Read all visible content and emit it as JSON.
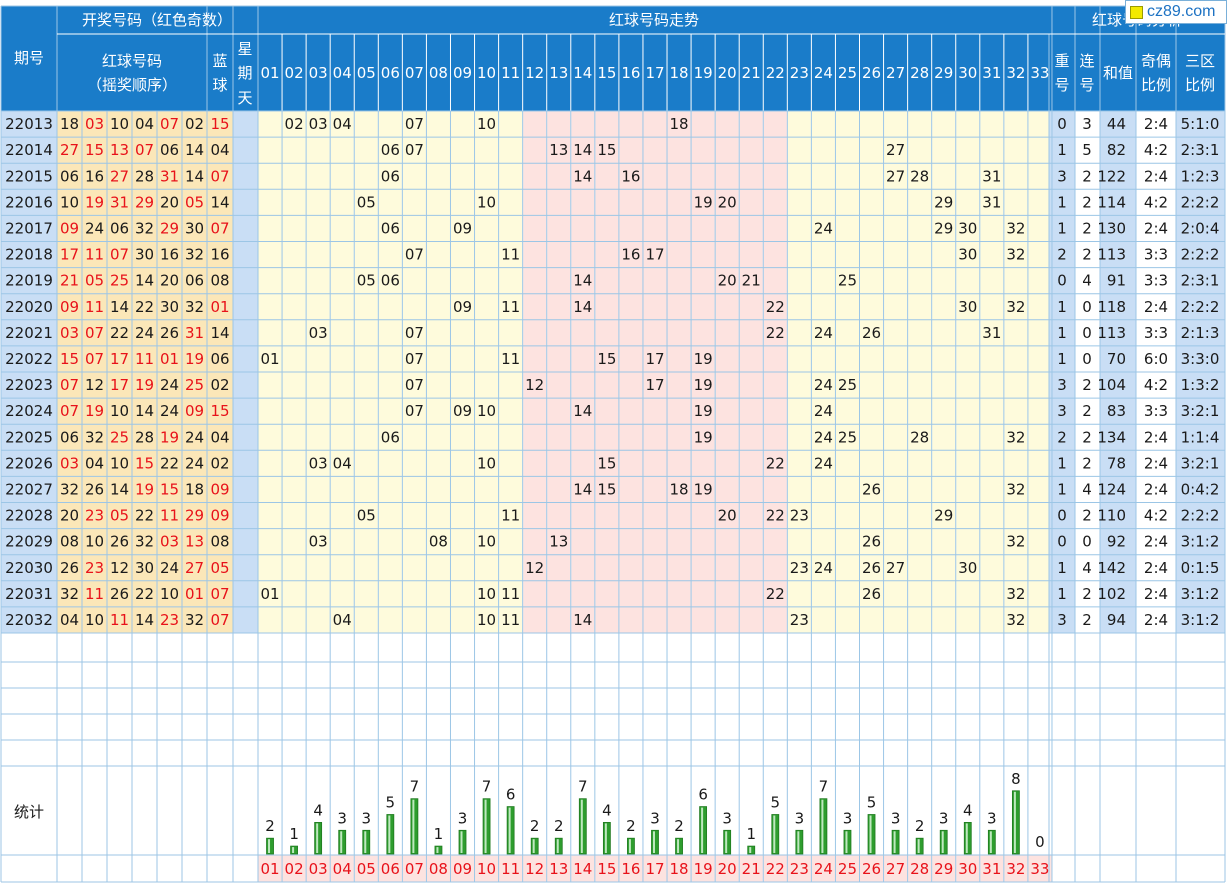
{
  "header": {
    "draw_group": "开奖号码（红色奇数）",
    "trend_group": "红球号码走势",
    "analysis_group": "红球号码分析",
    "period": "期号",
    "red_balls_line1": "红球号码",
    "red_balls_line2": "（摇奖顺序）",
    "blue_line1": "蓝",
    "blue_line2": "球",
    "weekday_line1": "星",
    "weekday_line2": "期",
    "weekday_line3": "天",
    "repeat_line1": "重",
    "repeat_line2": "号",
    "consecutive_line1": "连",
    "consecutive_line2": "号",
    "sum": "和值",
    "odd_even_line1": "奇偶",
    "odd_even_line2": "比例",
    "zone_line1": "三区",
    "zone_line2": "比例",
    "numbers": [
      "01",
      "02",
      "03",
      "04",
      "05",
      "06",
      "07",
      "08",
      "09",
      "10",
      "11",
      "12",
      "13",
      "14",
      "15",
      "16",
      "17",
      "18",
      "19",
      "20",
      "21",
      "22",
      "23",
      "24",
      "25",
      "26",
      "27",
      "28",
      "29",
      "30",
      "31",
      "32",
      "33"
    ]
  },
  "draws": [
    {
      "period": "22013",
      "reds": [
        "18",
        "03",
        "10",
        "04",
        "07",
        "02"
      ],
      "blue": "15",
      "repeat": "0",
      "consecutive": "3",
      "sum": "44",
      "odd_even": "2:4",
      "zone": "5:1:0"
    },
    {
      "period": "22014",
      "reds": [
        "27",
        "15",
        "13",
        "07",
        "06",
        "14"
      ],
      "blue": "04",
      "repeat": "1",
      "consecutive": "5",
      "sum": "82",
      "odd_even": "4:2",
      "zone": "2:3:1"
    },
    {
      "period": "22015",
      "reds": [
        "06",
        "16",
        "27",
        "28",
        "31",
        "14"
      ],
      "blue": "07",
      "repeat": "3",
      "consecutive": "2",
      "sum": "122",
      "odd_even": "2:4",
      "zone": "1:2:3"
    },
    {
      "period": "22016",
      "reds": [
        "10",
        "19",
        "31",
        "29",
        "20",
        "05"
      ],
      "blue": "14",
      "repeat": "1",
      "consecutive": "2",
      "sum": "114",
      "odd_even": "4:2",
      "zone": "2:2:2"
    },
    {
      "period": "22017",
      "reds": [
        "09",
        "24",
        "06",
        "32",
        "29",
        "30"
      ],
      "blue": "07",
      "repeat": "1",
      "consecutive": "2",
      "sum": "130",
      "odd_even": "2:4",
      "zone": "2:0:4"
    },
    {
      "period": "22018",
      "reds": [
        "17",
        "11",
        "07",
        "30",
        "16",
        "32"
      ],
      "blue": "16",
      "repeat": "2",
      "consecutive": "2",
      "sum": "113",
      "odd_even": "3:3",
      "zone": "2:2:2"
    },
    {
      "period": "22019",
      "reds": [
        "21",
        "05",
        "25",
        "14",
        "20",
        "06"
      ],
      "blue": "08",
      "repeat": "0",
      "consecutive": "4",
      "sum": "91",
      "odd_even": "3:3",
      "zone": "2:3:1"
    },
    {
      "period": "22020",
      "reds": [
        "09",
        "11",
        "14",
        "22",
        "30",
        "32"
      ],
      "blue": "01",
      "repeat": "1",
      "consecutive": "0",
      "sum": "118",
      "odd_even": "2:4",
      "zone": "2:2:2"
    },
    {
      "period": "22021",
      "reds": [
        "03",
        "07",
        "22",
        "24",
        "26",
        "31"
      ],
      "blue": "14",
      "repeat": "1",
      "consecutive": "0",
      "sum": "113",
      "odd_even": "3:3",
      "zone": "2:1:3"
    },
    {
      "period": "22022",
      "reds": [
        "15",
        "07",
        "17",
        "11",
        "01",
        "19"
      ],
      "blue": "06",
      "repeat": "1",
      "consecutive": "0",
      "sum": "70",
      "odd_even": "6:0",
      "zone": "3:3:0"
    },
    {
      "period": "22023",
      "reds": [
        "07",
        "12",
        "17",
        "19",
        "24",
        "25"
      ],
      "blue": "02",
      "repeat": "3",
      "consecutive": "2",
      "sum": "104",
      "odd_even": "4:2",
      "zone": "1:3:2"
    },
    {
      "period": "22024",
      "reds": [
        "07",
        "19",
        "10",
        "14",
        "24",
        "09"
      ],
      "blue": "15",
      "repeat": "3",
      "consecutive": "2",
      "sum": "83",
      "odd_even": "3:3",
      "zone": "3:2:1"
    },
    {
      "period": "22025",
      "reds": [
        "06",
        "32",
        "25",
        "28",
        "19",
        "24"
      ],
      "blue": "04",
      "repeat": "2",
      "consecutive": "2",
      "sum": "134",
      "odd_even": "2:4",
      "zone": "1:1:4"
    },
    {
      "period": "22026",
      "reds": [
        "03",
        "04",
        "10",
        "15",
        "22",
        "24"
      ],
      "blue": "02",
      "repeat": "1",
      "consecutive": "2",
      "sum": "78",
      "odd_even": "2:4",
      "zone": "3:2:1"
    },
    {
      "period": "22027",
      "reds": [
        "32",
        "26",
        "14",
        "19",
        "15",
        "18"
      ],
      "blue": "09",
      "repeat": "1",
      "consecutive": "4",
      "sum": "124",
      "odd_even": "2:4",
      "zone": "0:4:2"
    },
    {
      "period": "22028",
      "reds": [
        "20",
        "23",
        "05",
        "22",
        "11",
        "29"
      ],
      "blue": "09",
      "repeat": "0",
      "consecutive": "2",
      "sum": "110",
      "odd_even": "4:2",
      "zone": "2:2:2"
    },
    {
      "period": "22029",
      "reds": [
        "08",
        "10",
        "26",
        "32",
        "03",
        "13"
      ],
      "blue": "08",
      "repeat": "0",
      "consecutive": "0",
      "sum": "92",
      "odd_even": "2:4",
      "zone": "3:1:2"
    },
    {
      "period": "22030",
      "reds": [
        "26",
        "23",
        "12",
        "30",
        "24",
        "27"
      ],
      "blue": "05",
      "repeat": "1",
      "consecutive": "4",
      "sum": "142",
      "odd_even": "2:4",
      "zone": "0:1:5"
    },
    {
      "period": "22031",
      "reds": [
        "32",
        "11",
        "26",
        "22",
        "10",
        "01"
      ],
      "blue": "07",
      "repeat": "1",
      "consecutive": "2",
      "sum": "102",
      "odd_even": "2:4",
      "zone": "3:1:2"
    },
    {
      "period": "22032",
      "reds": [
        "04",
        "10",
        "11",
        "14",
        "23",
        "32"
      ],
      "blue": "07",
      "repeat": "3",
      "consecutive": "2",
      "sum": "94",
      "odd_even": "2:4",
      "zone": "3:1:2"
    }
  ],
  "stats_label": "统计",
  "watermark": "cz89.com",
  "colors": {
    "header_bg": "#1a7cc9",
    "period_bg": "#c9def5",
    "draw_bg": "#fbe7b8",
    "yellow_zone": "#fefbdc",
    "pink_zone": "#fde3e0",
    "grid_line": "#9cc6e6",
    "odd_red": "#e8121a",
    "bar_green": "#2e9d2e"
  },
  "chart_data": {
    "type": "bar",
    "title": "统计",
    "categories": [
      "01",
      "02",
      "03",
      "04",
      "05",
      "06",
      "07",
      "08",
      "09",
      "10",
      "11",
      "12",
      "13",
      "14",
      "15",
      "16",
      "17",
      "18",
      "19",
      "20",
      "21",
      "22",
      "23",
      "24",
      "25",
      "26",
      "27",
      "28",
      "29",
      "30",
      "31",
      "32",
      "33"
    ],
    "values": [
      2,
      1,
      4,
      3,
      3,
      5,
      7,
      1,
      3,
      7,
      6,
      2,
      2,
      7,
      4,
      2,
      3,
      2,
      6,
      3,
      1,
      5,
      3,
      7,
      3,
      5,
      3,
      2,
      3,
      4,
      3,
      8,
      0
    ],
    "xlabel": "",
    "ylabel": "",
    "ylim": [
      0,
      8
    ]
  }
}
